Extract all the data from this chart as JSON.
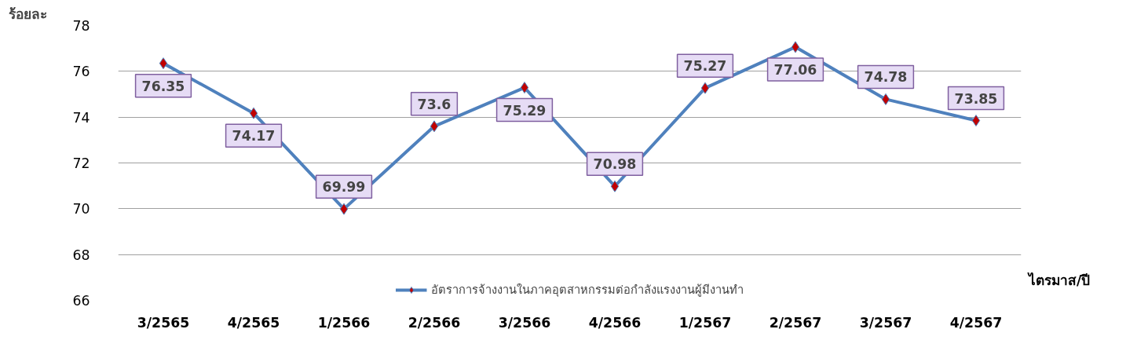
{
  "chart_data": {
    "type": "line",
    "ylabel": "ร้อยละ",
    "xlabel": "ไตรมาส/ปี",
    "categories": [
      "3/2565",
      "4/2565",
      "1/2566",
      "2/2566",
      "3/2566",
      "4/2566",
      "1/2567",
      "2/2567",
      "3/2567",
      "4/2567"
    ],
    "series": [
      {
        "name": "อัตราการจ้างงานในภาคอุตสาหกรรมต่อกำลังแรงงานผู้มีงานทำ",
        "color": "#4f81bd",
        "colors": [
          "#c00000",
          "#c00000",
          "#c00000",
          "#c00000",
          "#c00000",
          "#c00000",
          "#c00000",
          "#c00000",
          "#c00000",
          "#c00000"
        ],
        "values": [
          76.35,
          74.17,
          69.99,
          73.6,
          75.29,
          70.98,
          75.27,
          77.06,
          74.78,
          73.85
        ]
      }
    ],
    "ylim": [
      66,
      78
    ],
    "yticks": [
      66,
      68,
      70,
      72,
      74,
      76,
      78
    ],
    "grid": "y",
    "legend": "bottom",
    "marker": "diamond",
    "line_style": "solid",
    "data_labels": true
  }
}
